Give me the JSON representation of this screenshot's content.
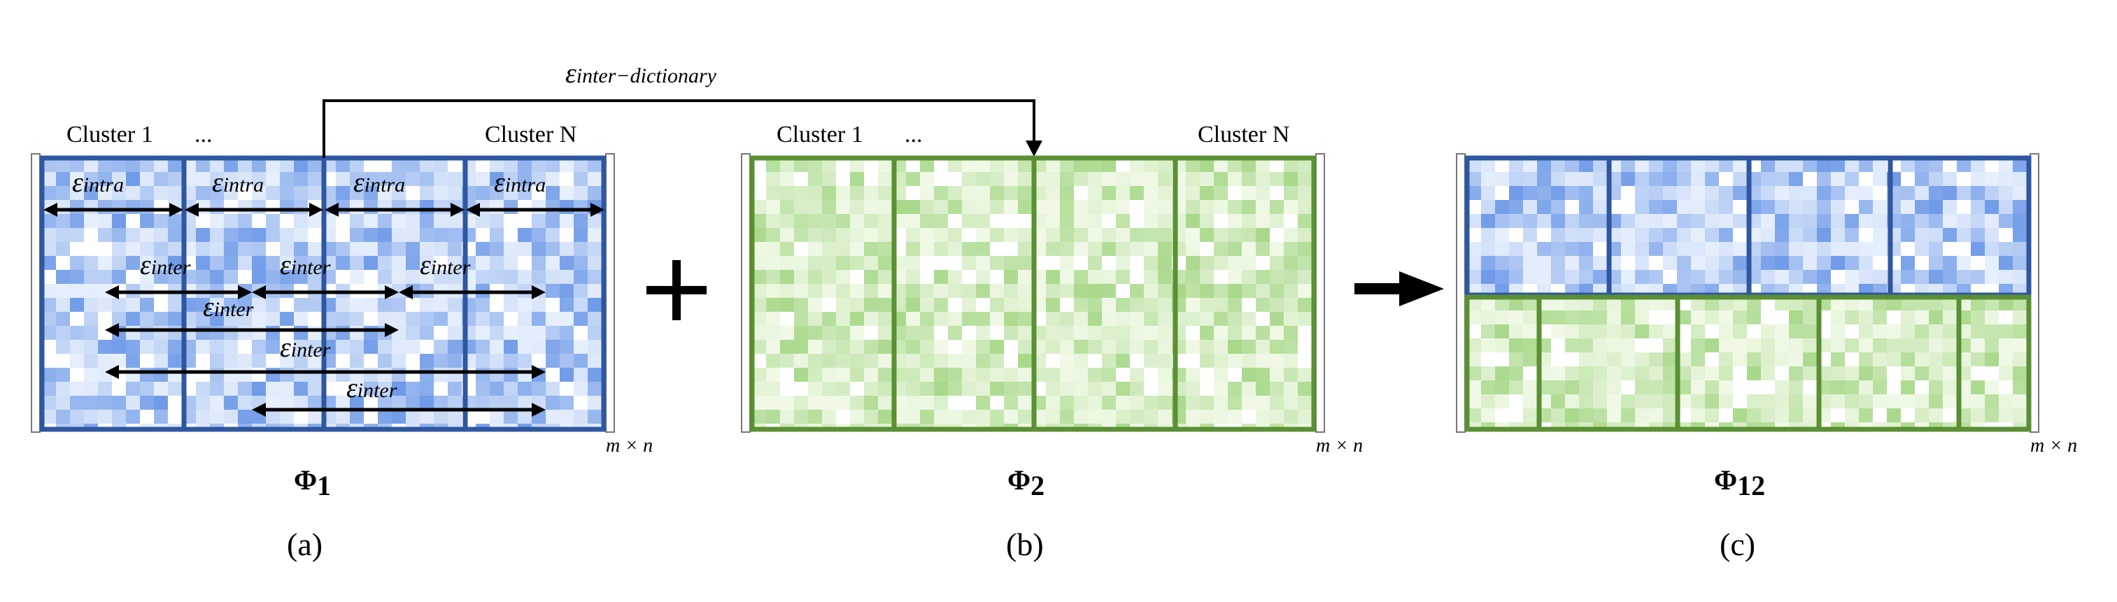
{
  "colors": {
    "blue_border": "#2f57a0",
    "blue_light": "#e6effc",
    "blue_dark": "#6f9ae8",
    "green_border": "#5b8f34",
    "green_light": "#f0f9e6",
    "green_dark": "#a8d88a",
    "arrow": "#000000"
  },
  "icons": {
    "plus": "plus-icon",
    "result_arrow": "right-arrow-icon"
  },
  "panel_a": {
    "cluster_first": "Cluster 1",
    "cluster_ellipsis": "...",
    "cluster_last": "Cluster N",
    "eps_symbol": "ε",
    "intra_sub": "intra",
    "inter_sub": "inter",
    "dim_label": "m × n",
    "phi_symbol": "Φ",
    "phi_sub": "1",
    "caption": "(a)"
  },
  "inter_dictionary": {
    "eps_symbol": "ε",
    "sub": "inter−dictionary"
  },
  "panel_b": {
    "cluster_first": "Cluster 1",
    "cluster_ellipsis": "...",
    "cluster_last": "Cluster N",
    "dim_label": "m × n",
    "phi_symbol": "Φ",
    "phi_sub": "2",
    "caption": "(b)"
  },
  "panel_c": {
    "dim_label": "m × n",
    "phi_symbol": "Φ",
    "phi_sub": "12",
    "caption": "(c)"
  }
}
